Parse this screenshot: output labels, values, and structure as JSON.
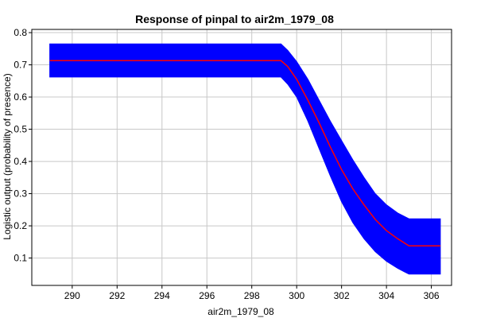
{
  "chart_data": {
    "type": "area",
    "title": "Response of pinpal to air2m_1979_08",
    "xlabel": "air2m_1979_08",
    "ylabel": "Logistic output (probability of presence)",
    "xlim": [
      288.2,
      306.9
    ],
    "ylim": [
      0.015,
      0.81
    ],
    "xticks": [
      290,
      292,
      294,
      296,
      298,
      300,
      302,
      304,
      306
    ],
    "yticks": [
      0.1,
      0.2,
      0.3,
      0.4,
      0.5,
      0.6,
      0.7,
      0.8
    ],
    "grid": true,
    "x": [
      289.0,
      299.3,
      299.6,
      300.0,
      300.5,
      301.0,
      301.5,
      302.0,
      302.5,
      303.0,
      303.5,
      304.0,
      304.5,
      305.0,
      306.4
    ],
    "series": [
      {
        "role": "mean",
        "color": "#ff0000",
        "values": [
          0.713,
          0.713,
          0.695,
          0.655,
          0.59,
          0.52,
          0.445,
          0.375,
          0.315,
          0.265,
          0.22,
          0.185,
          0.16,
          0.138,
          0.138
        ]
      },
      {
        "role": "upper",
        "color": "#0000ff",
        "values": [
          0.765,
          0.765,
          0.745,
          0.71,
          0.655,
          0.59,
          0.525,
          0.465,
          0.405,
          0.35,
          0.3,
          0.265,
          0.24,
          0.222,
          0.222
        ]
      },
      {
        "role": "lower",
        "color": "#0000ff",
        "values": [
          0.662,
          0.662,
          0.64,
          0.6,
          0.525,
          0.44,
          0.355,
          0.275,
          0.21,
          0.16,
          0.12,
          0.09,
          0.068,
          0.05,
          0.05
        ]
      }
    ],
    "colors": {
      "band": "#0000ff",
      "mean": "#ff0000",
      "grid": "#c8c8c8",
      "axis": "#000000"
    }
  }
}
